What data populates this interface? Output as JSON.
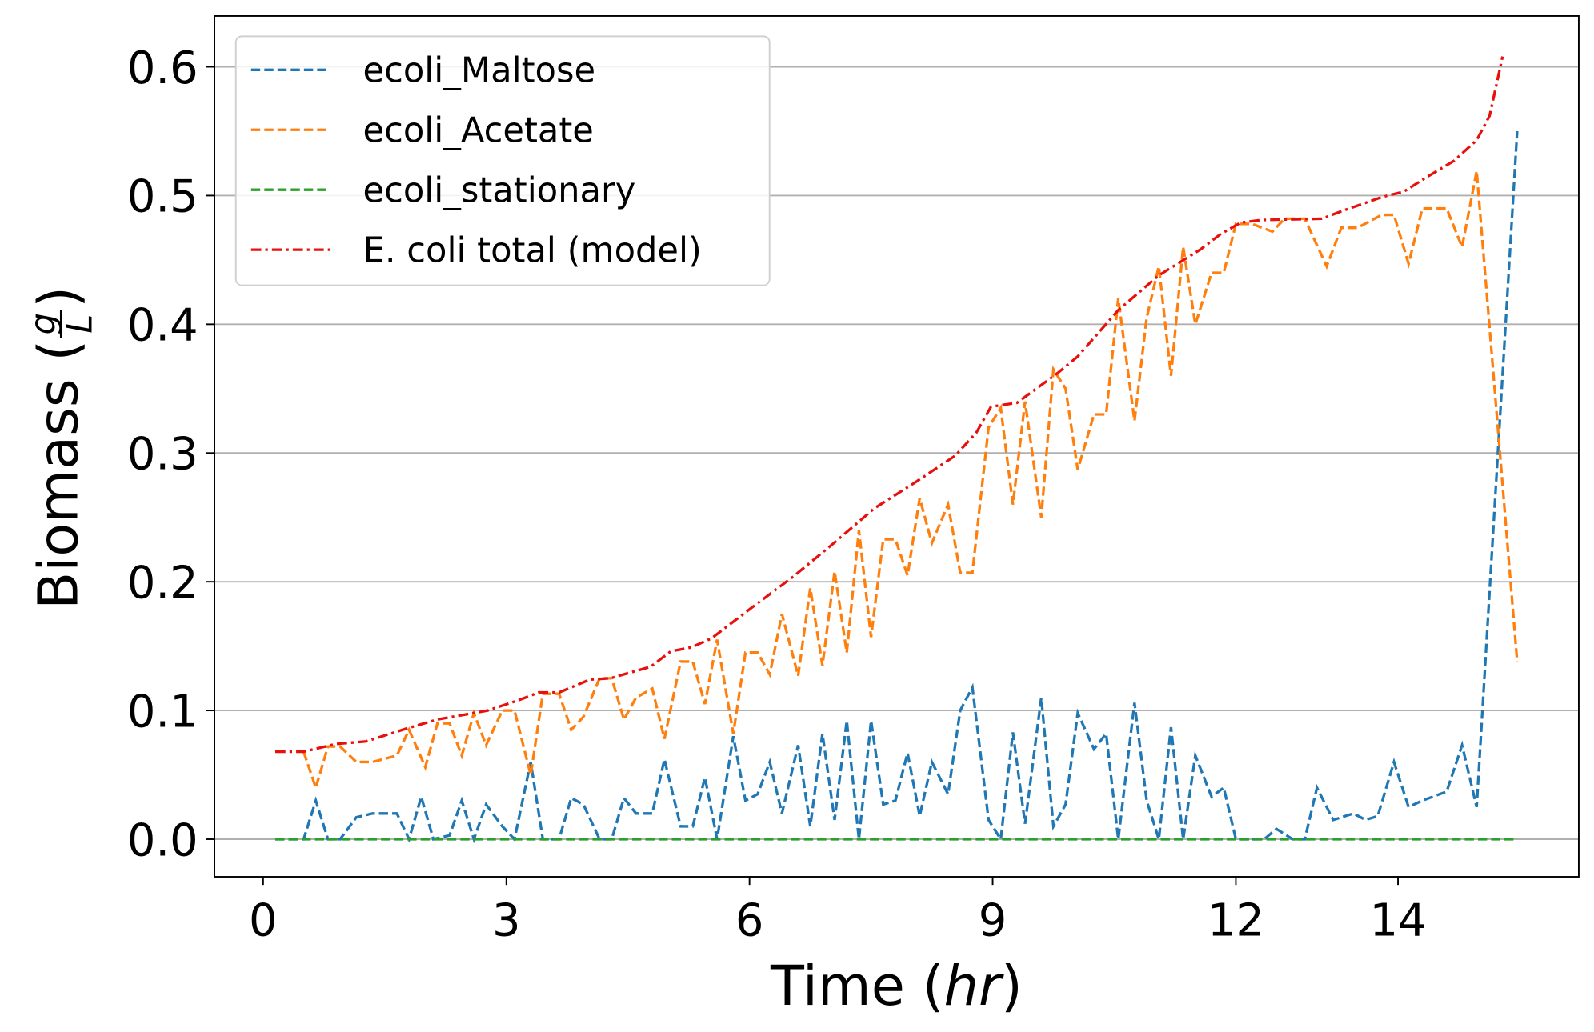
{
  "chart_data": {
    "type": "line",
    "xlabel": [
      "Time (",
      "hr",
      ")"
    ],
    "ylabel": [
      "Biomass (",
      "g",
      "L",
      ")"
    ],
    "xlim": [
      -0.6,
      16.23
    ],
    "ylim": [
      -0.0292,
      0.6395
    ],
    "xticks": [
      0,
      3,
      6,
      9,
      12,
      14
    ],
    "yticks": [
      {
        "value": 0,
        "label": "0.0"
      },
      0.1,
      0.2,
      0.3,
      0.4,
      0.5,
      0.6
    ],
    "grid": "y",
    "legend": "upper left",
    "series": [
      {
        "name": "ecoli_Maltose",
        "color": "#1f77b4",
        "linestyle": "dashed",
        "x": [
          0.15,
          0.5,
          0.65,
          0.8,
          0.95,
          1.15,
          1.35,
          1.65,
          1.8,
          1.95,
          2.1,
          2.3,
          2.45,
          2.6,
          2.75,
          2.95,
          3.1,
          3.3,
          3.45,
          3.65,
          3.8,
          3.95,
          4.15,
          4.3,
          4.45,
          4.6,
          4.8,
          4.95,
          5.15,
          5.3,
          5.45,
          5.6,
          5.8,
          5.95,
          6.1,
          6.25,
          6.4,
          6.6,
          6.75,
          6.9,
          7.05,
          7.2,
          7.35,
          7.5,
          7.65,
          7.8,
          7.95,
          8.1,
          8.25,
          8.45,
          8.6,
          8.75,
          8.95,
          9.1,
          9.25,
          9.4,
          9.6,
          9.75,
          9.9,
          10.05,
          10.25,
          10.4,
          10.55,
          10.75,
          10.9,
          11.05,
          11.2,
          11.35,
          11.5,
          11.7,
          11.85,
          12.0,
          12.2,
          12.35,
          12.5,
          12.7,
          12.85,
          13.0,
          13.2,
          13.45,
          13.6,
          13.75,
          13.95,
          14.13,
          14.3,
          14.6,
          14.79,
          14.97,
          15.47
        ],
        "values": [
          0,
          0,
          0.03,
          0,
          0,
          0.017,
          0.02,
          0.02,
          0,
          0.033,
          0,
          0.003,
          0.03,
          0,
          0.027,
          0.01,
          0,
          0.06,
          0,
          0,
          0.032,
          0.027,
          0,
          0,
          0.032,
          0.02,
          0.02,
          0.062,
          0.01,
          0.01,
          0.048,
          0,
          0.08,
          0.03,
          0.035,
          0.06,
          0.02,
          0.073,
          0.01,
          0.082,
          0.015,
          0.092,
          0,
          0.092,
          0.027,
          0.03,
          0.067,
          0.018,
          0.06,
          0.035,
          0.1,
          0.118,
          0.015,
          0,
          0.083,
          0.012,
          0.11,
          0.01,
          0.027,
          0.098,
          0.07,
          0.082,
          0,
          0.106,
          0.03,
          0,
          0.087,
          0,
          0.065,
          0.033,
          0.04,
          0,
          0,
          0,
          0.008,
          0,
          0,
          0.04,
          0.015,
          0.02,
          0.015,
          0.018,
          0.06,
          0.025,
          0.03,
          0.037,
          0.073,
          0.025,
          0.55
        ]
      },
      {
        "name": "ecoli_Acetate",
        "color": "#ff7f0e",
        "linestyle": "dashed",
        "x": [
          0.5,
          0.65,
          0.8,
          0.95,
          1.15,
          1.35,
          1.65,
          1.8,
          2.0,
          2.15,
          2.3,
          2.45,
          2.6,
          2.75,
          2.95,
          3.1,
          3.3,
          3.45,
          3.65,
          3.8,
          3.95,
          4.15,
          4.3,
          4.45,
          4.6,
          4.8,
          4.95,
          5.15,
          5.3,
          5.45,
          5.6,
          5.8,
          5.95,
          6.1,
          6.25,
          6.4,
          6.6,
          6.75,
          6.9,
          7.05,
          7.2,
          7.35,
          7.5,
          7.65,
          7.8,
          7.95,
          8.1,
          8.25,
          8.45,
          8.6,
          8.75,
          8.95,
          9.1,
          9.25,
          9.4,
          9.6,
          9.75,
          9.9,
          10.05,
          10.25,
          10.4,
          10.55,
          10.75,
          10.9,
          11.05,
          11.2,
          11.35,
          11.5,
          11.7,
          11.85,
          12.0,
          12.2,
          12.45,
          12.6,
          12.85,
          13.12,
          13.3,
          13.5,
          13.8,
          13.95,
          14.13,
          14.3,
          14.6,
          14.79,
          14.97,
          15.47
        ],
        "values": [
          0.068,
          0.04,
          0.072,
          0.072,
          0.06,
          0.06,
          0.065,
          0.085,
          0.056,
          0.09,
          0.09,
          0.065,
          0.098,
          0.073,
          0.1,
          0.1,
          0.05,
          0.113,
          0.113,
          0.085,
          0.095,
          0.125,
          0.125,
          0.093,
          0.11,
          0.117,
          0.078,
          0.138,
          0.138,
          0.105,
          0.155,
          0.082,
          0.145,
          0.145,
          0.128,
          0.175,
          0.127,
          0.195,
          0.135,
          0.208,
          0.145,
          0.24,
          0.157,
          0.233,
          0.233,
          0.205,
          0.265,
          0.23,
          0.26,
          0.207,
          0.207,
          0.32,
          0.335,
          0.26,
          0.34,
          0.25,
          0.365,
          0.35,
          0.287,
          0.33,
          0.33,
          0.42,
          0.325,
          0.405,
          0.445,
          0.36,
          0.46,
          0.4,
          0.44,
          0.44,
          0.478,
          0.478,
          0.472,
          0.482,
          0.482,
          0.445,
          0.475,
          0.475,
          0.485,
          0.485,
          0.447,
          0.49,
          0.49,
          0.46,
          0.519,
          0.138
        ]
      },
      {
        "name": "ecoli_stationary",
        "color": "#2ca02c",
        "linestyle": "dashed",
        "x": [
          0.15,
          15.47
        ],
        "values": [
          0,
          0
        ]
      },
      {
        "name": "E. coli total (model)",
        "color": "#e8100c",
        "linestyle": "dashdot",
        "x": [
          0.15,
          0.5,
          0.9,
          1.27,
          1.77,
          2.15,
          2.77,
          3.15,
          3.4,
          3.65,
          4.03,
          4.28,
          4.78,
          5.03,
          5.28,
          5.53,
          6.03,
          6.54,
          7.04,
          7.54,
          8.04,
          8.54,
          8.8,
          8.98,
          9.3,
          9.8,
          10.05,
          10.55,
          11.05,
          11.56,
          11.81,
          12.06,
          12.31,
          13.06,
          13.31,
          13.81,
          14.07,
          14.32,
          14.69,
          14.97,
          15.13,
          15.29
        ],
        "values": [
          0.068,
          0.068,
          0.074,
          0.076,
          0.086,
          0.093,
          0.1,
          0.108,
          0.114,
          0.114,
          0.124,
          0.125,
          0.134,
          0.146,
          0.149,
          0.156,
          0.18,
          0.204,
          0.23,
          0.257,
          0.277,
          0.298,
          0.316,
          0.336,
          0.339,
          0.362,
          0.375,
          0.411,
          0.438,
          0.458,
          0.47,
          0.479,
          0.481,
          0.482,
          0.488,
          0.499,
          0.503,
          0.513,
          0.527,
          0.543,
          0.562,
          0.608
        ]
      }
    ]
  }
}
